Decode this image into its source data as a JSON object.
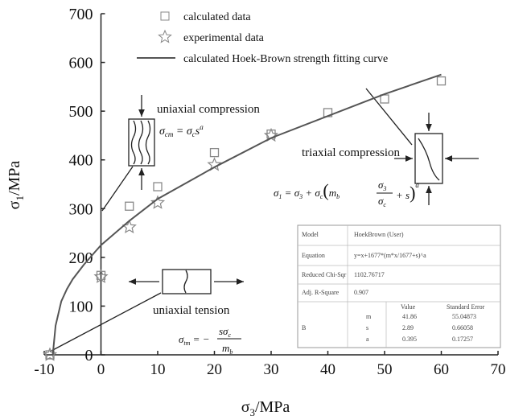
{
  "chart_data": {
    "type": "line",
    "xlabel": [
      "σ",
      "3",
      "/MPa"
    ],
    "ylabel": [
      "σ",
      "1",
      "/MPa"
    ],
    "xlim": [
      -10,
      70
    ],
    "xticks": [
      -10,
      0,
      10,
      20,
      30,
      40,
      50,
      60,
      70
    ],
    "ylim": [
      0,
      700
    ],
    "yticks": [
      0,
      100,
      200,
      300,
      400,
      500,
      600,
      700
    ],
    "series": [
      {
        "name": "calculated data",
        "marker": "square",
        "color": "#888888",
        "x": [
          -9,
          0,
          5,
          10,
          20,
          30,
          40,
          50,
          60
        ],
        "values": [
          0,
          163,
          305,
          345,
          415,
          453,
          497,
          525,
          562
        ]
      },
      {
        "name": "experimental data",
        "marker": "star",
        "color": "#888888",
        "x": [
          -9,
          0,
          5,
          10,
          20,
          30
        ],
        "values": [
          0,
          160,
          262,
          312,
          390,
          450
        ]
      },
      {
        "name": "calculated Hoek-Brown strength fitting curve",
        "marker": "line",
        "color": "#555555",
        "x": [
          -8.5,
          -8,
          -7,
          -6,
          -5,
          -3,
          -1,
          0,
          5,
          10,
          20,
          30,
          40,
          50,
          60
        ],
        "values": [
          0,
          60,
          110,
          135,
          155,
          185,
          212,
          225,
          275,
          320,
          385,
          445,
          490,
          535,
          575
        ]
      }
    ]
  },
  "annotations": {
    "uc_label": "uniaxial compression",
    "uc_formula": [
      "σ",
      "cm",
      " = σ",
      "c",
      "s",
      "a"
    ],
    "tc_label": "triaxial compression",
    "tc_formula": [
      "σ",
      "1",
      " = σ",
      "3",
      " + σ",
      "c",
      "m",
      "b",
      "σ",
      "3",
      "σ",
      "c",
      "+ s",
      "a"
    ],
    "ut_label": "uniaxial tension",
    "ut_formula": [
      "σ",
      "tm",
      " = −",
      "sσ",
      "c",
      "m",
      "b"
    ]
  },
  "table": {
    "rows": [
      [
        "Model",
        "HoekBrown (User)"
      ],
      [
        "Equation",
        "y=x+1677*(m*x/1677+s)^a"
      ],
      [
        "Reduced Chi-Sqr",
        "1102.76717"
      ],
      [
        "Adj. R-Square",
        "0.907"
      ]
    ],
    "header": [
      "Value",
      "Standard Error"
    ],
    "group": "B",
    "params": [
      [
        "m",
        "41.86",
        "55.04873"
      ],
      [
        "s",
        "2.89",
        "0.66058"
      ],
      [
        "a",
        "0.395",
        "0.17257"
      ]
    ]
  }
}
